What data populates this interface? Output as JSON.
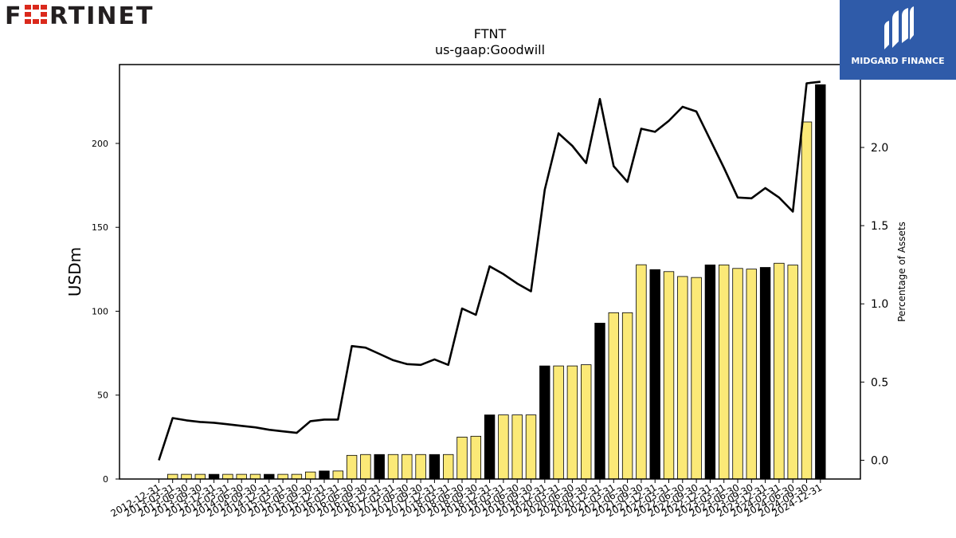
{
  "brands": {
    "left_logo_text": "FORTINET",
    "right_logo_text": "MIDGARD FINANCE"
  },
  "chart_data": {
    "type": "bar+line",
    "title": "FTNT",
    "subtitle": "us-gaap:Goodwill",
    "ylabel": "USDm",
    "y2label": "Percentage of Assets",
    "ylim": [
      0,
      247
    ],
    "y2lim": [
      -0.12,
      2.53
    ],
    "yticks": [
      0,
      50,
      100,
      150,
      200
    ],
    "y2ticks": [
      0.0,
      0.5,
      1.0,
      1.5,
      2.0
    ],
    "y2tick_labels": [
      "0.0",
      "0.5",
      "1.0",
      "1.5",
      "2.0"
    ],
    "grid": false,
    "legend": "none",
    "colors": {
      "bar_default": "#fbe977",
      "bar_year_end": "#000000",
      "line": "#000000"
    },
    "categories": [
      "2012-12-31",
      "2013-03-31",
      "2013-06-30",
      "2013-09-30",
      "2013-12-31",
      "2014-03-31",
      "2014-06-30",
      "2014-09-30",
      "2014-12-31",
      "2015-03-31",
      "2015-06-30",
      "2015-09-30",
      "2015-12-31",
      "2016-03-31",
      "2016-06-30",
      "2016-09-30",
      "2016-12-31",
      "2017-03-31",
      "2017-06-30",
      "2017-09-30",
      "2017-12-31",
      "2018-03-31",
      "2018-06-30",
      "2018-09-30",
      "2018-12-31",
      "2019-03-31",
      "2019-06-30",
      "2019-09-30",
      "2019-12-31",
      "2020-03-31",
      "2020-06-30",
      "2020-09-30",
      "2020-12-31",
      "2021-03-31",
      "2021-06-30",
      "2021-09-30",
      "2021-12-31",
      "2022-03-31",
      "2022-06-30",
      "2022-09-30",
      "2022-12-31",
      "2023-03-31",
      "2023-06-30",
      "2023-09-30",
      "2023-12-31",
      "2024-03-31",
      "2024-06-30",
      "2024-09-30",
      "2024-12-31"
    ],
    "goodwill_usdm": [
      null,
      2.8,
      2.8,
      2.8,
      2.8,
      2.8,
      2.8,
      2.8,
      2.8,
      2.8,
      2.8,
      4.2,
      4.8,
      4.8,
      14.1,
      14.6,
      14.6,
      14.6,
      14.6,
      14.6,
      14.6,
      14.6,
      25.0,
      25.5,
      38.2,
      38.2,
      38.2,
      38.2,
      67.4,
      67.4,
      67.4,
      68.1,
      92.9,
      99.1,
      99.1,
      127.7,
      124.8,
      123.6,
      120.7,
      120.1,
      127.6,
      127.6,
      125.5,
      125.1,
      126.1,
      128.6,
      127.5,
      212.8,
      235.0
    ],
    "pct_of_assets": [
      0.0,
      0.27,
      0.255,
      0.245,
      0.24,
      0.23,
      0.22,
      0.21,
      0.195,
      0.185,
      0.175,
      0.25,
      0.26,
      0.26,
      0.73,
      0.72,
      0.68,
      0.64,
      0.615,
      0.61,
      0.645,
      0.61,
      0.97,
      0.93,
      1.24,
      1.19,
      1.13,
      1.08,
      1.73,
      2.09,
      2.01,
      1.9,
      2.31,
      1.88,
      1.78,
      2.12,
      2.1,
      2.17,
      2.26,
      2.23,
      2.05,
      1.87,
      1.68,
      1.675,
      1.74,
      1.68,
      1.59,
      2.41,
      2.42
    ],
    "year_end_flags": [
      true,
      false,
      false,
      false,
      true,
      false,
      false,
      false,
      true,
      false,
      false,
      false,
      true,
      false,
      false,
      false,
      true,
      false,
      false,
      false,
      true,
      false,
      false,
      false,
      true,
      false,
      false,
      false,
      true,
      false,
      false,
      false,
      true,
      false,
      false,
      false,
      true,
      false,
      false,
      false,
      true,
      false,
      false,
      false,
      true,
      false,
      false,
      false,
      true
    ]
  }
}
